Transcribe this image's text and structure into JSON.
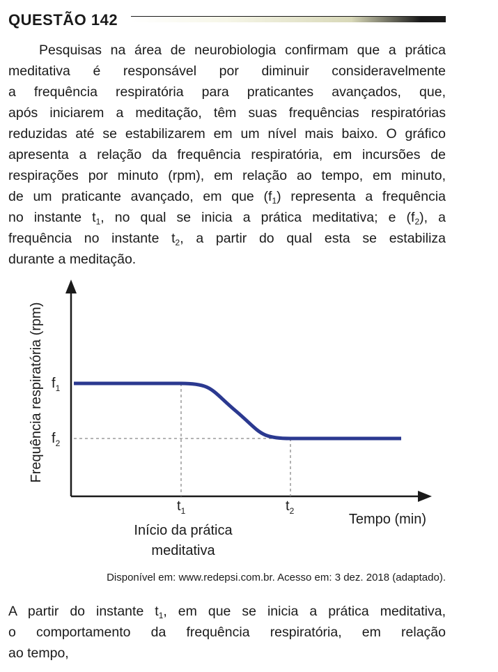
{
  "question": {
    "title": "QUESTÃO 142"
  },
  "intro": {
    "lines": [
      "Pesquisas na área de neurobiologia confirmam que a prática",
      "meditativa é responsável por diminuir consideravelmente",
      "a frequência respiratória para praticantes avançados, que,",
      "após iniciarem a meditação, têm suas frequências respiratórias",
      "reduzidas até se estabilizarem em um nível mais baixo. O gráfico",
      "apresenta a relação da frequência respiratória, em incursões de",
      "respirações por minuto (rpm), em relação ao tempo, em minuto,"
    ],
    "line8_a": "de um praticante avançado, em que (f",
    "line8_sub": "1",
    "line8_b": ") representa a frequência",
    "line9_a": "no instante t",
    "line9_sub1": "1",
    "line9_b": ", no qual se inicia a prática meditativa; e (f",
    "line9_sub2": "2",
    "line9_c": "), a",
    "line10_a": "frequência no instante t",
    "line10_sub": "2",
    "line10_b": ", a partir do qual esta se estabiliza",
    "line11": "durante a meditação."
  },
  "chart_data": {
    "type": "line",
    "ylabel": "Frequência respiratória (rpm)",
    "xlabel": "Tempo (min)",
    "y_ticks": [
      {
        "base": "f",
        "sub": "1"
      },
      {
        "base": "f",
        "sub": "2"
      }
    ],
    "x_ticks": [
      {
        "base": "t",
        "sub": "1"
      },
      {
        "base": "t",
        "sub": "2"
      }
    ],
    "annotation_lines": [
      "Início da prática",
      "meditativa"
    ],
    "series": [
      {
        "shape": "constant at f1 until t1, smooth decrease between t1 and t2, constant at f2 after t2"
      }
    ],
    "line_color": "#2b3990",
    "grid": false
  },
  "source": "Disponível em: www.redepsi.com.br. Acesso em: 3 dez. 2018 (adaptado).",
  "prompt": {
    "line1_a": "A partir do instante t",
    "line1_sub": "1",
    "line1_b": ", em que se inicia a prática meditativa,",
    "line2": "o comportamento da frequência respiratória, em relação",
    "line3": "ao tempo,"
  }
}
